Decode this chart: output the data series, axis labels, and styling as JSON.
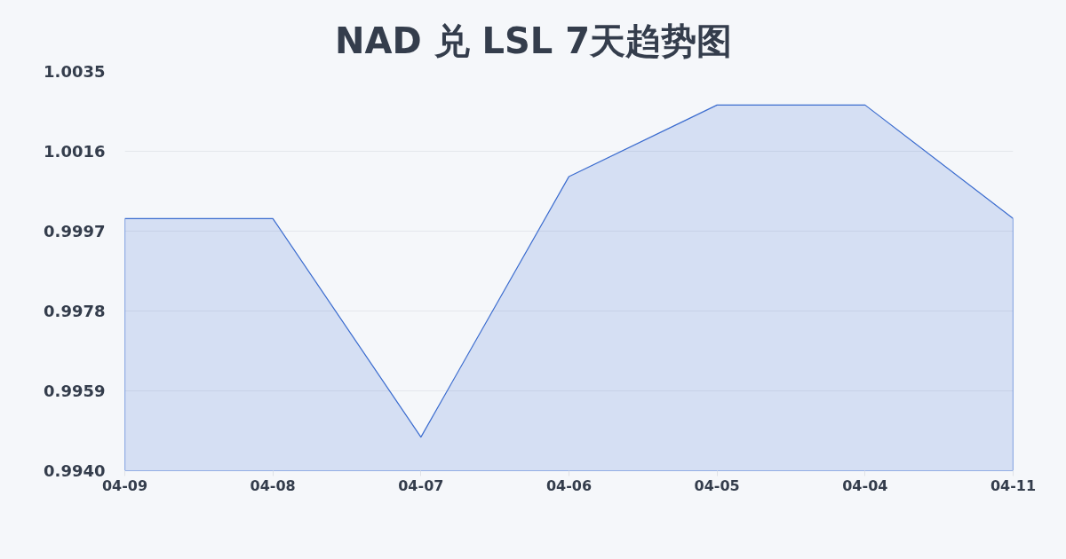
{
  "chart_data": {
    "type": "area",
    "title": "NAD 兑 LSL 7天趋势图",
    "categories": [
      "04-09",
      "04-08",
      "04-07",
      "04-06",
      "04-05",
      "04-04",
      "04-11"
    ],
    "series": [
      {
        "color": "#3b6ccf",
        "values": [
          1.0,
          1.0,
          0.9948,
          1.001,
          1.0027,
          1.0027,
          1.0
        ]
      }
    ],
    "ylim": [
      0.994,
      1.0035
    ],
    "yticks": [
      {
        "value": 0.994,
        "label": "0.9940"
      },
      0.9959,
      0.9978,
      0.9997,
      1.0016,
      1.0035
    ],
    "grid": "y",
    "line_style": "solid"
  }
}
